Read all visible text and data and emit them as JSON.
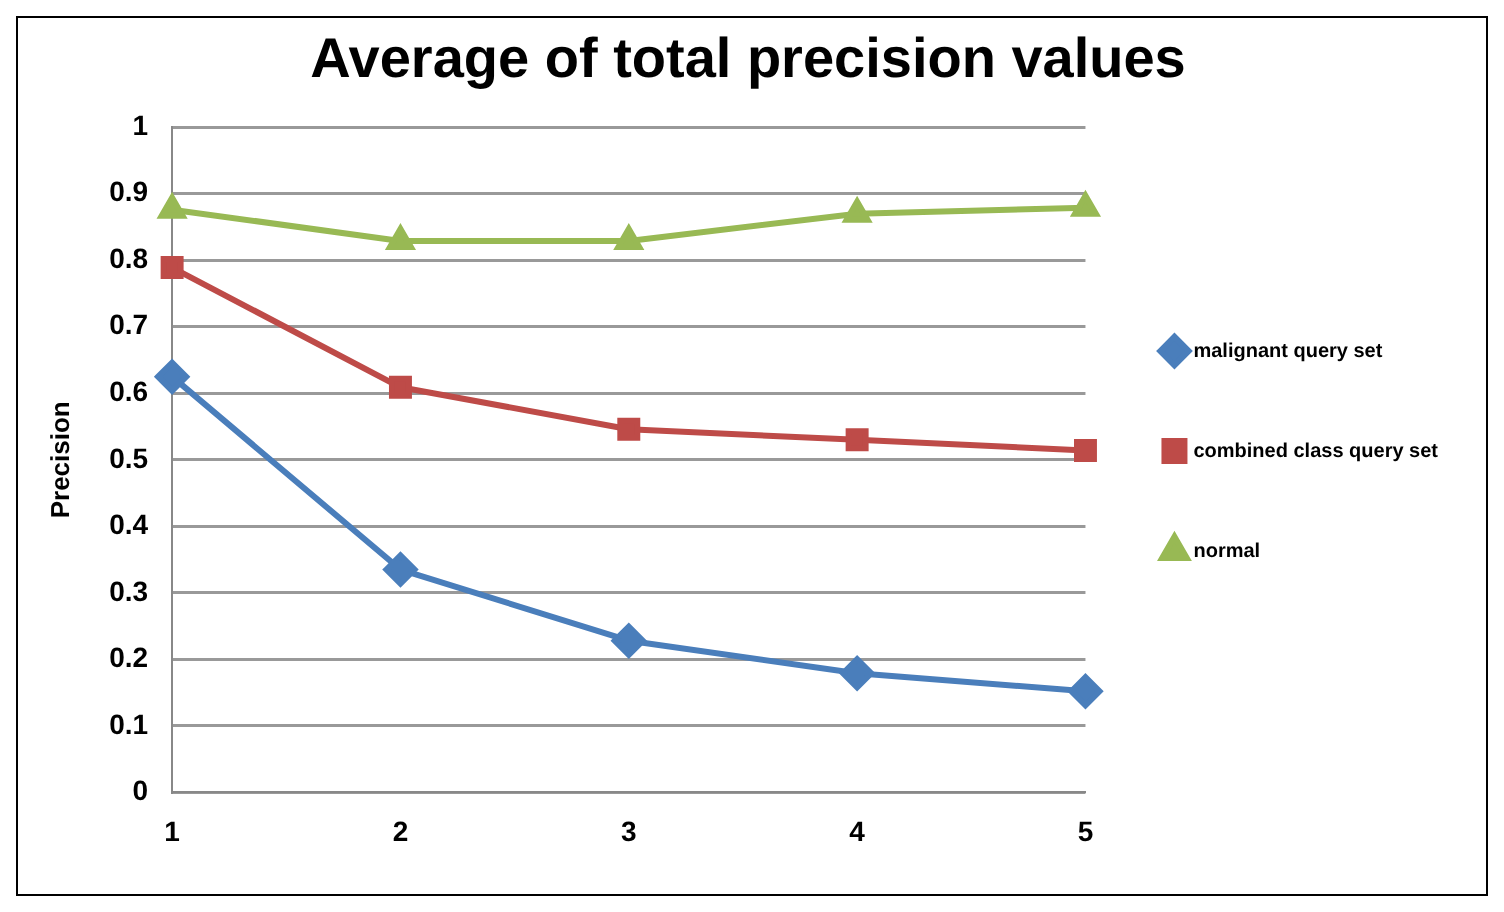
{
  "chart_data": {
    "type": "line",
    "title": "Average of total precision values",
    "ylabel": "Precision",
    "categories": [
      "1",
      "2",
      "3",
      "4",
      "5"
    ],
    "series": [
      {
        "name": "malignant query set",
        "color": "#4a7ebb",
        "marker": "diamond",
        "values": [
          0.625,
          0.335,
          0.228,
          0.179,
          0.152
        ]
      },
      {
        "name": "combined class query set",
        "color": "#be4b48",
        "marker": "square",
        "values": [
          0.789,
          0.609,
          0.546,
          0.53,
          0.514
        ]
      },
      {
        "name": "normal",
        "color": "#98b954",
        "marker": "triangle",
        "values": [
          0.876,
          0.829,
          0.829,
          0.87,
          0.879
        ]
      }
    ],
    "ylim": [
      0,
      1
    ],
    "yticks": [
      0,
      0.1,
      0.2,
      0.3,
      0.4,
      0.5,
      0.6,
      0.7,
      0.8,
      0.9,
      1
    ],
    "grid": "y",
    "legend": "right",
    "line_style": "solid"
  }
}
